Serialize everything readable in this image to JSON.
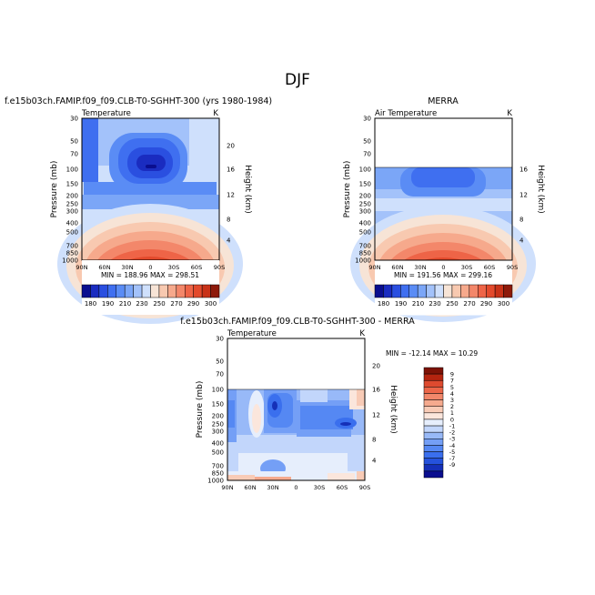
{
  "figure": {
    "title": "DJF"
  },
  "colors": {
    "temperature_scale": [
      "#0a0e8f",
      "#1a2cc0",
      "#2a4fe0",
      "#3f6ff0",
      "#5a8cf5",
      "#7ba6f7",
      "#a3c2fa",
      "#cfe0fc",
      "#f7e4d6",
      "#f8c9b0",
      "#f6a98c",
      "#f3876a",
      "#ee6447",
      "#e34a2c",
      "#c83218",
      "#8e1a0a"
    ],
    "difference_scale": [
      "#0a0e8f",
      "#1530b8",
      "#2552dc",
      "#3a6fee",
      "#5588f3",
      "#749ff6",
      "#98b9f8",
      "#c2d6fb",
      "#e6eefc",
      "#fbe6dc",
      "#f8cbb6",
      "#f5aa8e",
      "#f2876a",
      "#ec6649",
      "#de4a2f",
      "#b4240f",
      "#7d1206"
    ]
  },
  "chart_data": [
    {
      "type": "heatmap",
      "panel": "model",
      "title": "f.e15b03ch.FAMIP.f09_f09.CLB-T0-SGHHT-300 (yrs 1980-1984)",
      "variable_label": "Temperature",
      "units": "K",
      "ylabel": "Pressure (mb)",
      "ylabel_right": "Height (km)",
      "xticks": [
        "90N",
        "60N",
        "30N",
        "0",
        "30S",
        "60S",
        "90S"
      ],
      "yticks": [
        "30",
        "50",
        "70",
        "100",
        "150",
        "200",
        "250",
        "300",
        "400",
        "500",
        "700",
        "850",
        "1000"
      ],
      "height_ticks": [
        "20",
        "16",
        "12",
        "8",
        "4"
      ],
      "ylim": [
        30,
        1000
      ],
      "xlim": [
        90,
        -90
      ],
      "stats": "MIN = 188.96   MAX = 298.51",
      "min": 188.96,
      "max": 298.51,
      "colorbar_labels": [
        "180",
        "190",
        "210",
        "230",
        "250",
        "270",
        "290",
        "300"
      ]
    },
    {
      "type": "heatmap",
      "panel": "obs",
      "title": "MERRA",
      "variable_label": "Air Temperature",
      "units": "K",
      "ylabel": "Pressure (mb)",
      "ylabel_right": "Height (km)",
      "xticks": [
        "90N",
        "60N",
        "30N",
        "0",
        "30S",
        "60S",
        "90S"
      ],
      "yticks": [
        "30",
        "50",
        "70",
        "100",
        "150",
        "200",
        "250",
        "300",
        "400",
        "500",
        "700",
        "850",
        "1000"
      ],
      "height_ticks": [
        "16",
        "12",
        "8",
        "4"
      ],
      "ylim": [
        30,
        1000
      ],
      "data_top": 100,
      "stats": "MIN = 191.56   MAX = 299.16",
      "min": 191.56,
      "max": 299.16,
      "colorbar_labels": [
        "180",
        "190",
        "210",
        "230",
        "250",
        "270",
        "290",
        "300"
      ]
    },
    {
      "type": "heatmap",
      "panel": "diff",
      "title": "f.e15b03ch.FAMIP.f09_f09.CLB-T0-SGHHT-300  -  MERRA",
      "variable_label": "Temperature",
      "units": "K",
      "ylabel": "Pressure (mb)",
      "ylabel_right": "Height (km)",
      "xticks": [
        "90N",
        "60N",
        "30N",
        "0",
        "30S",
        "60S",
        "90S"
      ],
      "yticks": [
        "30",
        "50",
        "70",
        "100",
        "150",
        "200",
        "250",
        "300",
        "400",
        "500",
        "700",
        "850",
        "1000"
      ],
      "height_ticks": [
        "20",
        "16",
        "12",
        "8",
        "4"
      ],
      "ylim": [
        30,
        1000
      ],
      "data_top": 100,
      "stats": "MIN = -12.14   MAX =  10.29",
      "min": -12.14,
      "max": 10.29,
      "colorbar_labels": [
        "9",
        "7",
        "5",
        "4",
        "3",
        "2",
        "1",
        "0",
        "-1",
        "-2",
        "-3",
        "-4",
        "-5",
        "-7",
        "-9"
      ]
    }
  ]
}
